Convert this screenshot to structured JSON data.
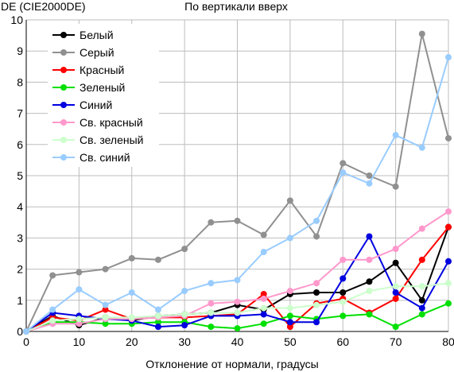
{
  "chart_data": {
    "type": "line",
    "title": "По вертикали вверх",
    "ylabel": "DE (CIE2000DE)",
    "xlabel": "Отклонение от нормали, градусы",
    "xlim": [
      0,
      80
    ],
    "ylim": [
      0,
      10
    ],
    "xticks": [
      0,
      10,
      20,
      30,
      40,
      50,
      60,
      70,
      80
    ],
    "yticks": [
      0,
      1,
      2,
      3,
      4,
      5,
      6,
      7,
      8,
      9,
      10
    ],
    "grid": true,
    "legend_position": "top-left",
    "x": [
      0,
      5,
      10,
      15,
      20,
      25,
      30,
      35,
      40,
      45,
      50,
      55,
      60,
      65,
      70,
      75,
      80
    ],
    "series": [
      {
        "name": "Белый",
        "color": "#000000",
        "values": [
          0,
          0.5,
          0.2,
          0.45,
          0.35,
          0.5,
          0.55,
          0.6,
          0.85,
          0.7,
          1.2,
          1.25,
          1.25,
          1.6,
          2.2,
          1.0,
          3.35
        ]
      },
      {
        "name": "Серый",
        "color": "#909090",
        "values": [
          0,
          1.8,
          1.9,
          2.0,
          2.35,
          2.3,
          2.65,
          3.5,
          3.55,
          3.1,
          4.2,
          3.05,
          5.4,
          5.0,
          4.65,
          9.55,
          6.2
        ]
      },
      {
        "name": "Красный",
        "color": "#ff0000",
        "values": [
          0,
          0.45,
          0.35,
          0.7,
          0.4,
          0.45,
          0.45,
          0.5,
          0.55,
          1.2,
          0.15,
          0.9,
          1.05,
          0.6,
          1.05,
          2.3,
          3.35
        ]
      },
      {
        "name": "Зеленый",
        "color": "#00e000",
        "values": [
          0,
          0.3,
          0.3,
          0.25,
          0.25,
          0.3,
          0.3,
          0.15,
          0.1,
          0.25,
          0.5,
          0.4,
          0.5,
          0.55,
          0.15,
          0.55,
          0.9
        ]
      },
      {
        "name": "Синий",
        "color": "#0000e0",
        "values": [
          0,
          0.6,
          0.5,
          0.4,
          0.35,
          0.15,
          0.2,
          0.5,
          0.5,
          0.55,
          0.3,
          0.3,
          1.7,
          3.05,
          1.25,
          0.75,
          2.25
        ]
      },
      {
        "name": "Св. красный",
        "color": "#ff99cc",
        "values": [
          0,
          0.25,
          0.25,
          0.4,
          0.4,
          0.45,
          0.5,
          0.9,
          0.95,
          1.05,
          1.3,
          1.55,
          2.3,
          2.3,
          2.65,
          3.3,
          3.85
        ]
      },
      {
        "name": "Св. зеленый",
        "color": "#ccffcc",
        "values": [
          0,
          0.35,
          0.4,
          0.45,
          0.45,
          0.5,
          0.55,
          0.6,
          0.6,
          0.75,
          0.75,
          0.85,
          0.95,
          1.3,
          1.45,
          1.45,
          1.55
        ]
      },
      {
        "name": "Св. синий",
        "color": "#99ccff",
        "values": [
          0,
          0.7,
          1.35,
          0.85,
          1.25,
          0.7,
          1.3,
          1.55,
          1.65,
          2.55,
          3.0,
          3.55,
          5.1,
          4.75,
          6.3,
          5.9,
          8.8
        ]
      }
    ]
  }
}
